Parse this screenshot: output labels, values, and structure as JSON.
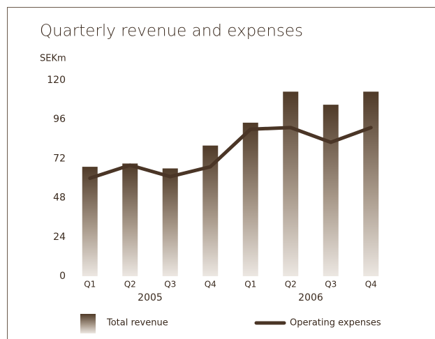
{
  "chart_data": {
    "type": "bar_line",
    "title": "Quarterly revenue and expenses",
    "y_unit": "SEKm",
    "categories": [
      "Q1",
      "Q2",
      "Q3",
      "Q4",
      "Q1",
      "Q2",
      "Q3",
      "Q4"
    ],
    "x_groups": [
      "2005",
      "2006"
    ],
    "series": [
      {
        "name": "Total revenue",
        "type": "bar",
        "color": "#4f3a28",
        "values": [
          67,
          69,
          66,
          80,
          94,
          113,
          105,
          113
        ]
      },
      {
        "name": "Operating expenses",
        "type": "line",
        "color": "#4a3526",
        "values": [
          60,
          68,
          61,
          67,
          90,
          91,
          82,
          91
        ]
      }
    ],
    "ylim": [
      0,
      120
    ],
    "yticks": [
      0,
      24,
      48,
      72,
      96,
      120
    ],
    "grid": false
  }
}
